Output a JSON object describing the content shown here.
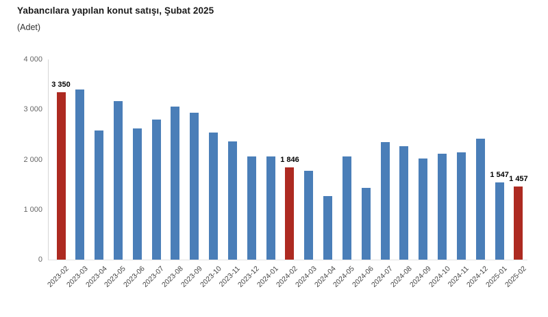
{
  "chart_data": {
    "type": "bar",
    "title": "Yabancılara yapılan konut satışı, Şubat 2025",
    "subtitle": "(Adet)",
    "xlabel": "",
    "ylabel": "",
    "ylim": [
      0,
      4000
    ],
    "yticks": [
      0,
      1000,
      2000,
      3000,
      4000
    ],
    "ytick_labels": [
      "0",
      "1 000",
      "2 000",
      "3 000",
      "4 000"
    ],
    "grid": false,
    "legend": "none",
    "categories": [
      "2023-02",
      "2023-03",
      "2023-04",
      "2023-05",
      "2023-06",
      "2023-07",
      "2023-08",
      "2023-09",
      "2023-10",
      "2023-11",
      "2023-12",
      "2024-01",
      "2024-02",
      "2024-03",
      "2024-04",
      "2024-05",
      "2024-06",
      "2024-07",
      "2024-08",
      "2024-09",
      "2024-10",
      "2024-11",
      "2024-12",
      "2025-01",
      "2025-02"
    ],
    "values": [
      3350,
      3405,
      2574,
      3163,
      2625,
      2801,
      3058,
      2940,
      2544,
      2368,
      2063,
      2060,
      1846,
      1772,
      1270,
      2064,
      1440,
      2351,
      2271,
      2022,
      2121,
      2147,
      2420,
      1547,
      1457
    ],
    "highlighted_indices": [
      0,
      12,
      24
    ],
    "labeled_indices": [
      0,
      12,
      23,
      24
    ],
    "value_labels": {
      "0": "3 350",
      "12": "1 846",
      "23": "1 547",
      "24": "1 457"
    },
    "bar_color": "#4a7eb8",
    "highlight_color": "#ad2a21"
  }
}
